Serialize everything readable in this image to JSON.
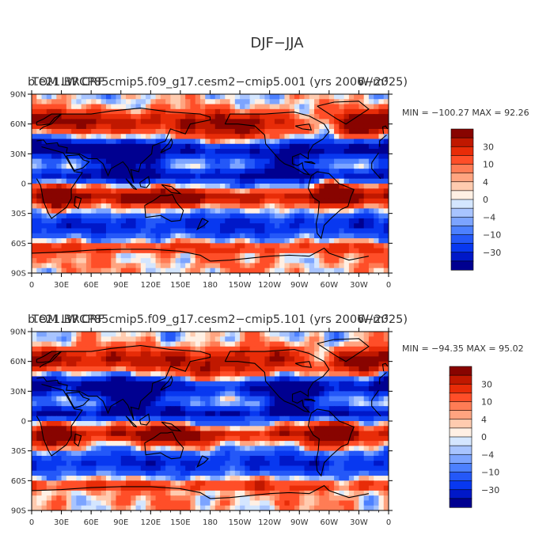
{
  "chart_data": {
    "type": "heatmap",
    "title": "DJF−JJA",
    "colorbar": {
      "colors": [
        "#000090",
        "#0018c8",
        "#0838f0",
        "#2458f8",
        "#4c80ff",
        "#7ca4ff",
        "#a8c4ff",
        "#d4e6ff",
        "#fff0e4",
        "#ffcbaf",
        "#ffa480",
        "#ff7c55",
        "#ff4e28",
        "#e82c08",
        "#c01800",
        "#880400"
      ],
      "tick_labels": [
        "30",
        "10",
        "4",
        "0",
        "−4",
        "−10",
        "−30"
      ]
    },
    "x_ticks": [
      "0",
      "30E",
      "60E",
      "90E",
      "120E",
      "150E",
      "180",
      "150W",
      "120W",
      "90W",
      "60W",
      "30W",
      "0"
    ],
    "y_ticks": [
      "90N",
      "60N",
      "30N",
      "0",
      "30S",
      "60S",
      "90S"
    ],
    "panels": [
      {
        "title_left": "TOM LW CRF",
        "title_center": "b.e21.BRCP85cmip5.f09_g17.cesm2−cmip5.001 (yrs 2006−2025)",
        "title_right": "W/m²",
        "min_label": "MIN = −100.27  MAX =  92.26",
        "min": -100.27,
        "max": 92.26
      },
      {
        "title_left": "TOM LW CRF",
        "title_center": "b.e21.BRCP85cmip5.f09_g17.cesm2−cmip5.101 (yrs 2006−2025)",
        "title_right": "W/m²",
        "min_label": "MIN = −94.35  MAX =  95.02",
        "min": -94.35,
        "max": 95.02
      }
    ]
  }
}
